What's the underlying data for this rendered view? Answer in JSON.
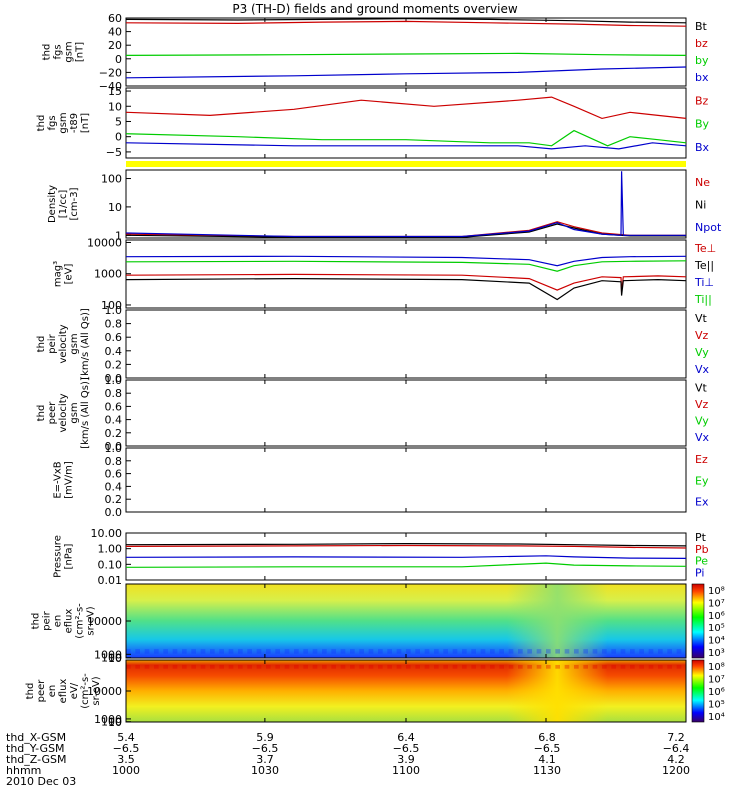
{
  "title": "P3 (TH-D) fields and ground moments overview",
  "colors": {
    "black": "#000000",
    "red": "#cc0000",
    "green": "#00cc00",
    "blue": "#0000cc",
    "yellow": "#ffff00"
  },
  "chart_data": [
    {
      "type": "line",
      "title": "",
      "ylabel": [
        "thd",
        "fgs",
        "gsm",
        "[nT]"
      ],
      "ylim": [
        -40,
        60
      ],
      "yticks": [
        "60",
        "40",
        "20",
        "0",
        "−20",
        "−40"
      ],
      "ytickvals": [
        60,
        40,
        20,
        0,
        -20,
        -40
      ],
      "series": [
        {
          "name": "Bt",
          "color": "black",
          "points": [
            [
              0,
              58
            ],
            [
              0.2,
              57
            ],
            [
              0.35,
              58
            ],
            [
              0.5,
              59
            ],
            [
              0.65,
              58
            ],
            [
              0.8,
              56
            ],
            [
              0.9,
              54
            ],
            [
              1,
              53
            ]
          ]
        },
        {
          "name": "bz",
          "color": "red",
          "points": [
            [
              0,
              53
            ],
            [
              0.2,
              52
            ],
            [
              0.35,
              54
            ],
            [
              0.5,
              55
            ],
            [
              0.65,
              53
            ],
            [
              0.8,
              51
            ],
            [
              0.9,
              49
            ],
            [
              1,
              48
            ]
          ]
        },
        {
          "name": "by",
          "color": "green",
          "points": [
            [
              0,
              5
            ],
            [
              0.3,
              6
            ],
            [
              0.5,
              7
            ],
            [
              0.7,
              8
            ],
            [
              0.85,
              6
            ],
            [
              1,
              5
            ]
          ]
        },
        {
          "name": "bx",
          "color": "blue",
          "points": [
            [
              0,
              -28
            ],
            [
              0.3,
              -25
            ],
            [
              0.5,
              -22
            ],
            [
              0.7,
              -20
            ],
            [
              0.85,
              -15
            ],
            [
              1,
              -12
            ]
          ]
        }
      ]
    },
    {
      "type": "line",
      "title": "",
      "ylabel": [
        "thd",
        "fgs",
        "gsm",
        "-t89",
        "[nT]"
      ],
      "ylim": [
        -7,
        16
      ],
      "yticks": [
        "15",
        "10",
        "5",
        "0",
        "−5"
      ],
      "ytickvals": [
        15,
        10,
        5,
        0,
        -5
      ],
      "series": [
        {
          "name": "Bz",
          "color": "red",
          "points": [
            [
              0,
              8
            ],
            [
              0.15,
              7
            ],
            [
              0.3,
              9
            ],
            [
              0.42,
              12
            ],
            [
              0.55,
              10
            ],
            [
              0.7,
              12
            ],
            [
              0.76,
              13
            ],
            [
              0.8,
              10
            ],
            [
              0.85,
              6
            ],
            [
              0.9,
              8
            ],
            [
              0.95,
              7
            ],
            [
              1,
              6
            ]
          ]
        },
        {
          "name": "By",
          "color": "green",
          "points": [
            [
              0,
              1
            ],
            [
              0.2,
              0
            ],
            [
              0.35,
              -1
            ],
            [
              0.5,
              -1
            ],
            [
              0.65,
              -2
            ],
            [
              0.72,
              -2
            ],
            [
              0.76,
              -3
            ],
            [
              0.8,
              2
            ],
            [
              0.86,
              -3
            ],
            [
              0.9,
              0
            ],
            [
              0.95,
              -1
            ],
            [
              1,
              -2
            ]
          ]
        },
        {
          "name": "Bx",
          "color": "blue",
          "points": [
            [
              0,
              -2
            ],
            [
              0.3,
              -3
            ],
            [
              0.55,
              -3
            ],
            [
              0.7,
              -3
            ],
            [
              0.76,
              -4
            ],
            [
              0.82,
              -3
            ],
            [
              0.88,
              -4
            ],
            [
              0.94,
              -2
            ],
            [
              1,
              -3
            ]
          ]
        }
      ]
    },
    {
      "type": "line",
      "title": "",
      "ylabel": [
        "Density",
        "[1/cc]",
        "[cm-3]"
      ],
      "scale": "log",
      "ylim": [
        0.8,
        200
      ],
      "yticks": [
        "100",
        "10",
        "1"
      ],
      "ytickvals": [
        100,
        10,
        1
      ],
      "series": [
        {
          "name": "Ne",
          "color": "red",
          "points": [
            [
              0,
              1.1
            ],
            [
              0.3,
              0.9
            ],
            [
              0.6,
              0.9
            ],
            [
              0.72,
              1.5
            ],
            [
              0.77,
              3
            ],
            [
              0.8,
              2
            ],
            [
              0.85,
              1.2
            ],
            [
              0.9,
              1
            ],
            [
              1,
              1
            ]
          ]
        },
        {
          "name": "Ni",
          "color": "black",
          "points": [
            [
              0,
              1
            ],
            [
              0.3,
              0.85
            ],
            [
              0.6,
              0.85
            ],
            [
              0.72,
              1.3
            ],
            [
              0.77,
              2.5
            ],
            [
              0.8,
              1.8
            ],
            [
              0.85,
              1.1
            ],
            [
              0.9,
              0.95
            ],
            [
              1,
              0.95
            ]
          ]
        },
        {
          "name": "Npot",
          "color": "blue",
          "points": [
            [
              0,
              1.2
            ],
            [
              0.3,
              0.9
            ],
            [
              0.6,
              0.9
            ],
            [
              0.72,
              1.4
            ],
            [
              0.77,
              2.8
            ],
            [
              0.8,
              1.6
            ],
            [
              0.85,
              1.1
            ],
            [
              0.884,
              1
            ],
            [
              0.885,
              180
            ],
            [
              0.888,
              1
            ],
            [
              0.9,
              1
            ],
            [
              1,
              1
            ]
          ]
        }
      ]
    },
    {
      "type": "line",
      "title": "",
      "ylabel": [
        "mag³",
        "[eV]"
      ],
      "scale": "log",
      "ylim": [
        80,
        12000
      ],
      "yticks": [
        "10000",
        "1000",
        "100"
      ],
      "ytickvals": [
        10000,
        1000,
        100
      ],
      "series": [
        {
          "name": "Te⊥",
          "color": "red",
          "points": [
            [
              0,
              900
            ],
            [
              0.3,
              950
            ],
            [
              0.6,
              900
            ],
            [
              0.72,
              700
            ],
            [
              0.77,
              300
            ],
            [
              0.8,
              500
            ],
            [
              0.85,
              800
            ],
            [
              0.884,
              750
            ],
            [
              0.885,
              250
            ],
            [
              0.888,
              800
            ],
            [
              0.95,
              850
            ],
            [
              1,
              800
            ]
          ]
        },
        {
          "name": "Te||",
          "color": "black",
          "points": [
            [
              0,
              650
            ],
            [
              0.3,
              700
            ],
            [
              0.6,
              650
            ],
            [
              0.72,
              500
            ],
            [
              0.77,
              150
            ],
            [
              0.8,
              350
            ],
            [
              0.85,
              600
            ],
            [
              0.884,
              550
            ],
            [
              0.885,
              200
            ],
            [
              0.888,
              600
            ],
            [
              0.95,
              650
            ],
            [
              1,
              600
            ]
          ]
        },
        {
          "name": "Ti⊥",
          "color": "blue",
          "points": [
            [
              0,
              3500
            ],
            [
              0.3,
              3600
            ],
            [
              0.6,
              3300
            ],
            [
              0.72,
              2800
            ],
            [
              0.77,
              1800
            ],
            [
              0.8,
              2500
            ],
            [
              0.85,
              3300
            ],
            [
              0.9,
              3500
            ],
            [
              1,
              3600
            ]
          ]
        },
        {
          "name": "Ti||",
          "color": "green",
          "points": [
            [
              0,
              2400
            ],
            [
              0.3,
              2500
            ],
            [
              0.6,
              2300
            ],
            [
              0.72,
              2000
            ],
            [
              0.77,
              1200
            ],
            [
              0.8,
              1800
            ],
            [
              0.85,
              2400
            ],
            [
              0.9,
              2500
            ],
            [
              1,
              2600
            ]
          ]
        }
      ]
    },
    {
      "type": "line",
      "title": "",
      "ylabel": [
        "thd",
        "peir",
        "velocity",
        "gsm",
        "[km/s (All Qs)]"
      ],
      "ylim": [
        0,
        1
      ],
      "yticks": [
        "1.0",
        "0.8",
        "0.6",
        "0.4",
        "0.2",
        "0.0"
      ],
      "ytickvals": [
        1,
        0.8,
        0.6,
        0.4,
        0.2,
        0
      ],
      "series": [
        {
          "name": "Vt",
          "color": "black",
          "points": []
        },
        {
          "name": "Vz",
          "color": "red",
          "points": []
        },
        {
          "name": "Vy",
          "color": "green",
          "points": []
        },
        {
          "name": "Vx",
          "color": "blue",
          "points": []
        }
      ]
    },
    {
      "type": "line",
      "title": "",
      "ylabel": [
        "thd",
        "peer",
        "velocity",
        "gsm",
        "[km/s (All Qs)]"
      ],
      "ylim": [
        0,
        1
      ],
      "yticks": [
        "1.0",
        "0.8",
        "0.6",
        "0.4",
        "0.2",
        "0.0"
      ],
      "ytickvals": [
        1,
        0.8,
        0.6,
        0.4,
        0.2,
        0
      ],
      "series": [
        {
          "name": "Vt",
          "color": "black",
          "points": []
        },
        {
          "name": "Vz",
          "color": "red",
          "points": []
        },
        {
          "name": "Vy",
          "color": "green",
          "points": []
        },
        {
          "name": "Vx",
          "color": "blue",
          "points": []
        }
      ]
    },
    {
      "type": "line",
      "title": "",
      "ylabel": [
        "E=-VxB",
        "[mV/m]"
      ],
      "ylim": [
        0,
        1
      ],
      "yticks": [
        "1.0",
        "0.8",
        "0.6",
        "0.4",
        "0.2",
        "0.0"
      ],
      "ytickvals": [
        1,
        0.8,
        0.6,
        0.4,
        0.2,
        0
      ],
      "series": [
        {
          "name": "Ez",
          "color": "red",
          "points": []
        },
        {
          "name": "Ey",
          "color": "green",
          "points": []
        },
        {
          "name": "Ex",
          "color": "blue",
          "points": []
        }
      ]
    },
    {
      "type": "line",
      "title": "",
      "ylabel": [
        "Pressure",
        "[nPa]"
      ],
      "scale": "log",
      "ylim": [
        0.01,
        10
      ],
      "yticks": [
        "10.00",
        "1.00",
        "0.10",
        "0.01"
      ],
      "ytickvals": [
        10,
        1,
        0.1,
        0.01
      ],
      "series": [
        {
          "name": "Pt",
          "color": "black",
          "points": [
            [
              0,
              1.8
            ],
            [
              0.3,
              1.9
            ],
            [
              0.5,
              2.1
            ],
            [
              0.7,
              2.0
            ],
            [
              0.8,
              1.8
            ],
            [
              0.9,
              1.6
            ],
            [
              1,
              1.5
            ]
          ]
        },
        {
          "name": "Pb",
          "color": "red",
          "points": [
            [
              0,
              1.4
            ],
            [
              0.3,
              1.5
            ],
            [
              0.5,
              1.6
            ],
            [
              0.7,
              1.5
            ],
            [
              0.8,
              1.4
            ],
            [
              0.9,
              1.2
            ],
            [
              1,
              1.1
            ]
          ]
        },
        {
          "name": "Pe",
          "color": "green",
          "points": [
            [
              0,
              0.065
            ],
            [
              0.3,
              0.07
            ],
            [
              0.6,
              0.07
            ],
            [
              0.75,
              0.12
            ],
            [
              0.8,
              0.09
            ],
            [
              0.9,
              0.08
            ],
            [
              1,
              0.075
            ]
          ]
        },
        {
          "name": "Pi",
          "color": "blue",
          "points": [
            [
              0,
              0.28
            ],
            [
              0.3,
              0.3
            ],
            [
              0.6,
              0.28
            ],
            [
              0.75,
              0.35
            ],
            [
              0.8,
              0.3
            ],
            [
              0.9,
              0.25
            ],
            [
              1,
              0.24
            ]
          ]
        }
      ]
    },
    {
      "type": "heatmap",
      "title": "",
      "ylabel": [
        "thd",
        "peir",
        "en",
        "eflux",
        "(cm²-s-",
        "sr-eV)"
      ],
      "yticks": [
        "10000",
        "1000",
        "100",
        "10"
      ],
      "ytickvals": [
        10000,
        1000,
        100,
        10
      ],
      "ylim": [
        7,
        20000
      ],
      "colorbar": [
        "10⁸",
        "10⁷",
        "10⁶",
        "10⁵",
        "10⁴",
        "10³"
      ]
    },
    {
      "type": "heatmap",
      "title": "",
      "ylabel": [
        "thd",
        "peer",
        "en",
        "eflux",
        "eV/",
        "(cm²-s-",
        "sr-eV)"
      ],
      "yticks": [
        "10000",
        "1000",
        "100",
        "10"
      ],
      "ytickvals": [
        10000,
        1000,
        100,
        10
      ],
      "ylim": [
        7,
        20000
      ],
      "colorbar": [
        "10⁸",
        "10⁷",
        "10⁶",
        "10⁵",
        "10⁴"
      ]
    }
  ],
  "xaxis": {
    "rows": [
      {
        "label": "thd_X-GSM",
        "values": [
          "5.4",
          "5.9",
          "6.4",
          "6.8",
          "7.2"
        ]
      },
      {
        "label": "thd_Y-GSM",
        "values": [
          "−6.5",
          "−6.5",
          "−6.5",
          "−6.5",
          "−6.4"
        ]
      },
      {
        "label": "thd_Z-GSM",
        "values": [
          "3.5",
          "3.7",
          "3.9",
          "4.1",
          "4.2"
        ]
      },
      {
        "label": "hhmm",
        "values": [
          "1000",
          "1030",
          "1100",
          "1130",
          "1200"
        ]
      }
    ],
    "date": "2010 Dec 03"
  }
}
